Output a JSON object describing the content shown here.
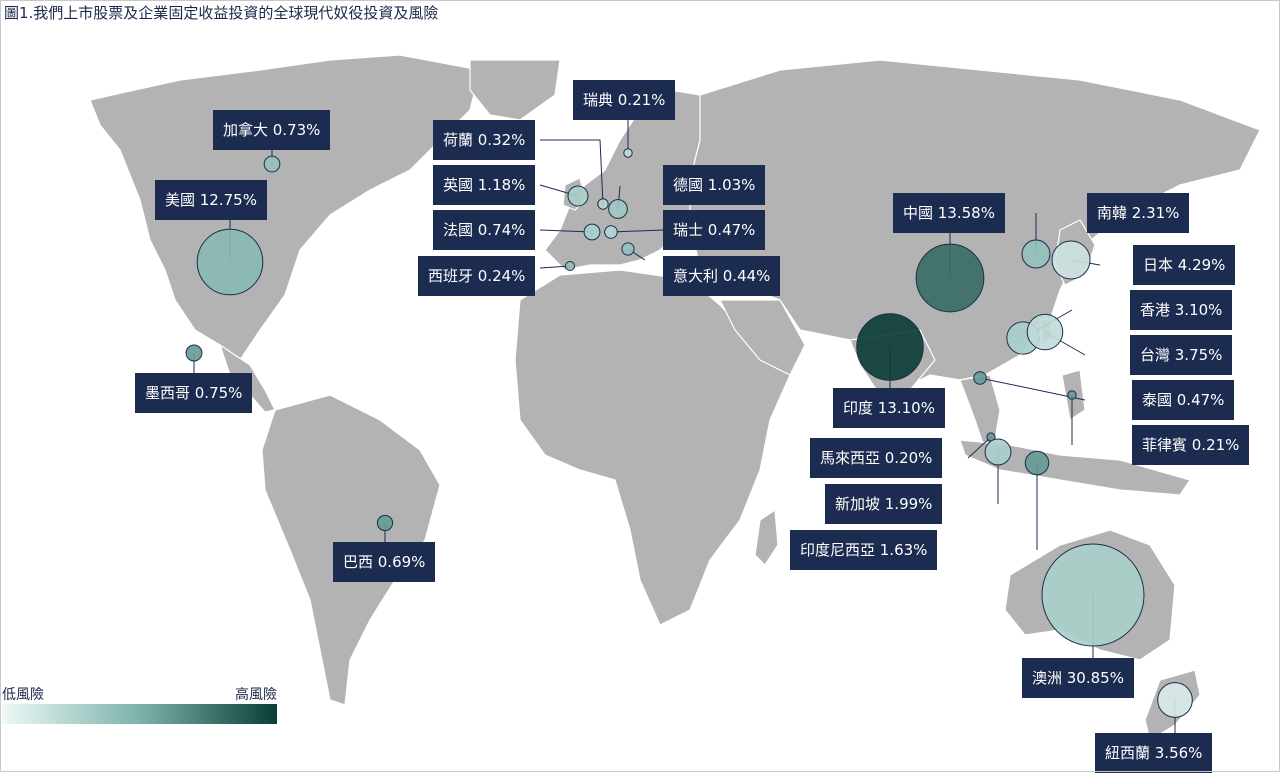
{
  "title": "圖1.我們上市股票及企業固定收益投資的全球現代奴役投資及風險",
  "legend": {
    "low": "低風險",
    "high": "高風險",
    "colors": [
      "#eef8f7",
      "#7bb3aa",
      "#0a3d35"
    ]
  },
  "colors": {
    "land": "#b3b3b3",
    "label_bg": "#1c2b50",
    "label_text": "#ffffff",
    "circle_stroke": "#1c2b50"
  },
  "countries": [
    {
      "id": "canada",
      "label": "加拿大 0.73%",
      "value": 0.73,
      "risk": 0.4
    },
    {
      "id": "usa",
      "label": "美國 12.75%",
      "value": 12.75,
      "risk": 0.45
    },
    {
      "id": "mexico",
      "label": "墨西哥 0.75%",
      "value": 0.75,
      "risk": 0.6
    },
    {
      "id": "brazil",
      "label": "巴西 0.69%",
      "value": 0.69,
      "risk": 0.6
    },
    {
      "id": "netherlands",
      "label": "荷蘭 0.32%",
      "value": 0.32,
      "risk": 0.25
    },
    {
      "id": "uk",
      "label": "英國 1.18%",
      "value": 1.18,
      "risk": 0.3
    },
    {
      "id": "france",
      "label": "法國 0.74%",
      "value": 0.74,
      "risk": 0.3
    },
    {
      "id": "spain",
      "label": "西班牙 0.24%",
      "value": 0.24,
      "risk": 0.4
    },
    {
      "id": "sweden",
      "label": "瑞典 0.21%",
      "value": 0.21,
      "risk": 0.2
    },
    {
      "id": "germany",
      "label": "德國 1.03%",
      "value": 1.03,
      "risk": 0.35
    },
    {
      "id": "switzerland",
      "label": "瑞士 0.47%",
      "value": 0.47,
      "risk": 0.25
    },
    {
      "id": "italy",
      "label": "意大利 0.44%",
      "value": 0.44,
      "risk": 0.4
    },
    {
      "id": "china",
      "label": "中國 13.58%",
      "value": 13.58,
      "risk": 0.8
    },
    {
      "id": "india",
      "label": "印度 13.10%",
      "value": 13.1,
      "risk": 1.0
    },
    {
      "id": "south_korea",
      "label": "南韓  2.31%",
      "value": 2.31,
      "risk": 0.4
    },
    {
      "id": "japan",
      "label": "日本 4.29%",
      "value": 4.29,
      "risk": 0.15
    },
    {
      "id": "hong_kong",
      "label": "香港 3.10%",
      "value": 3.1,
      "risk": 0.3
    },
    {
      "id": "taiwan",
      "label": "台灣 3.75%",
      "value": 3.75,
      "risk": 0.2
    },
    {
      "id": "thailand",
      "label": "泰國 0.47%",
      "value": 0.47,
      "risk": 0.6
    },
    {
      "id": "philippines",
      "label": "菲律賓 0.21%",
      "value": 0.21,
      "risk": 0.6
    },
    {
      "id": "malaysia",
      "label": "馬來西亞 0.20%",
      "value": 0.2,
      "risk": 0.6
    },
    {
      "id": "singapore",
      "label": "新加坡 1.99%",
      "value": 1.99,
      "risk": 0.3
    },
    {
      "id": "indonesia",
      "label": "印度尼西亞 1.63%",
      "value": 1.63,
      "risk": 0.6
    },
    {
      "id": "australia",
      "label": "澳洲 30.85%",
      "value": 30.85,
      "risk": 0.3
    },
    {
      "id": "new_zealand",
      "label": "紐西蘭 3.56%",
      "value": 3.56,
      "risk": 0.1
    }
  ]
}
